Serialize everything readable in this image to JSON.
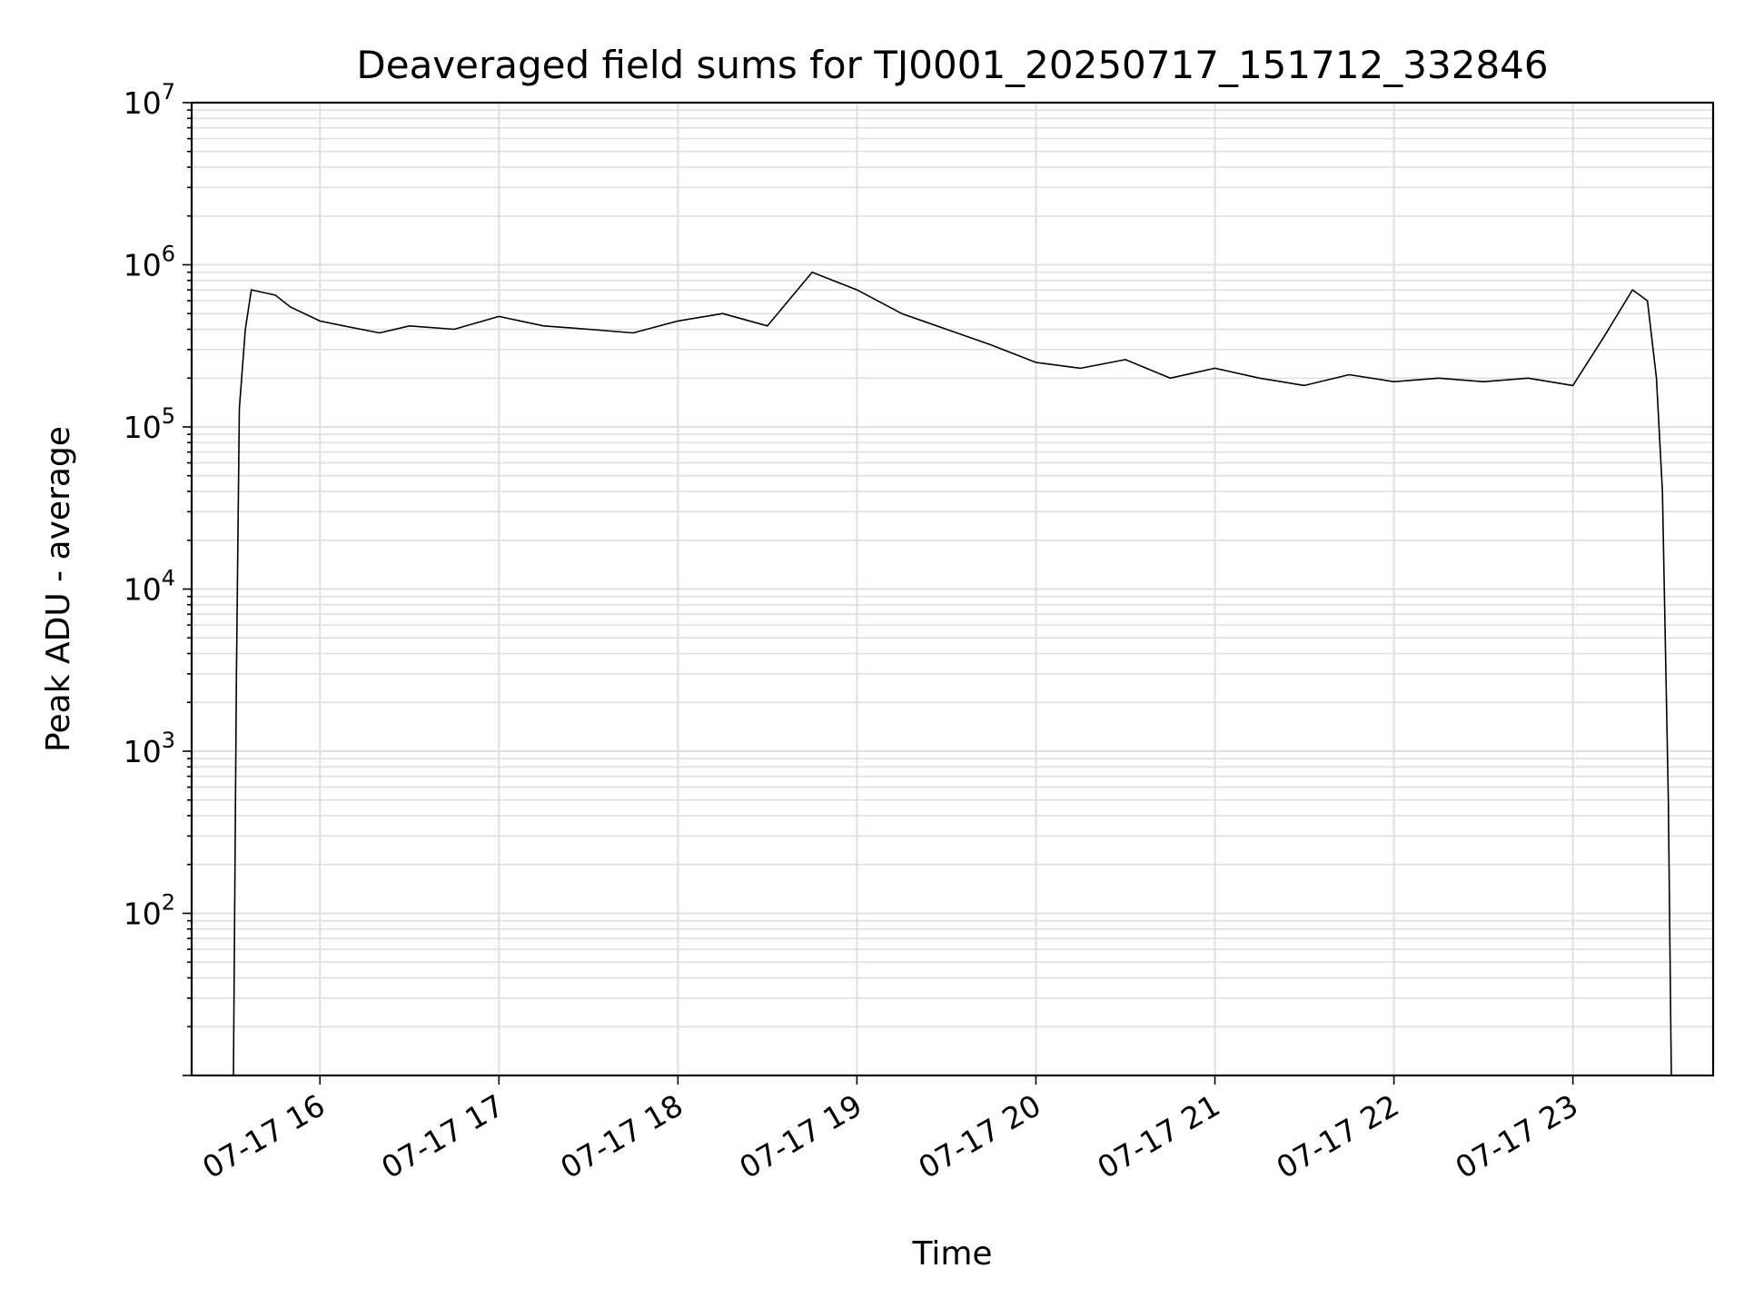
{
  "chart_data": {
    "type": "line",
    "title": "Deaveraged field sums for TJ0001_20250717_151712_332846",
    "xlabel": "Time",
    "ylabel": "Peak ADU - average",
    "yscale": "log",
    "ylim": [
      10,
      10000000
    ],
    "y_ticks": [
      {
        "value": 100,
        "base": "10",
        "exp": "2"
      },
      {
        "value": 1000,
        "base": "10",
        "exp": "3"
      },
      {
        "value": 10000,
        "base": "10",
        "exp": "4"
      },
      {
        "value": 100000,
        "base": "10",
        "exp": "5"
      },
      {
        "value": 1000000,
        "base": "10",
        "exp": "6"
      },
      {
        "value": 10000000,
        "base": "10",
        "exp": "7"
      }
    ],
    "xlim": [
      "2025-07-17 15:17",
      "2025-07-17 23:47"
    ],
    "x_ticks": [
      {
        "value": "2025-07-17 16:00",
        "label": "07-17 16"
      },
      {
        "value": "2025-07-17 17:00",
        "label": "07-17 17"
      },
      {
        "value": "2025-07-17 18:00",
        "label": "07-17 18"
      },
      {
        "value": "2025-07-17 19:00",
        "label": "07-17 19"
      },
      {
        "value": "2025-07-17 20:00",
        "label": "07-17 20"
      },
      {
        "value": "2025-07-17 21:00",
        "label": "07-17 21"
      },
      {
        "value": "2025-07-17 22:00",
        "label": "07-17 22"
      },
      {
        "value": "2025-07-17 23:00",
        "label": "07-17 23"
      }
    ],
    "grid": true,
    "series": [
      {
        "color": "#000000",
        "x": [
          "2025-07-17 15:31",
          "2025-07-17 15:32",
          "2025-07-17 15:33",
          "2025-07-17 15:35",
          "2025-07-17 15:37",
          "2025-07-17 15:45",
          "2025-07-17 15:50",
          "2025-07-17 16:00",
          "2025-07-17 16:08",
          "2025-07-17 16:20",
          "2025-07-17 16:30",
          "2025-07-17 16:45",
          "2025-07-17 17:00",
          "2025-07-17 17:15",
          "2025-07-17 17:30",
          "2025-07-17 17:45",
          "2025-07-17 18:00",
          "2025-07-17 18:15",
          "2025-07-17 18:30",
          "2025-07-17 18:45",
          "2025-07-17 19:00",
          "2025-07-17 19:15",
          "2025-07-17 19:30",
          "2025-07-17 19:45",
          "2025-07-17 20:00",
          "2025-07-17 20:15",
          "2025-07-17 20:30",
          "2025-07-17 20:45",
          "2025-07-17 21:00",
          "2025-07-17 21:15",
          "2025-07-17 21:30",
          "2025-07-17 21:45",
          "2025-07-17 22:00",
          "2025-07-17 22:15",
          "2025-07-17 22:30",
          "2025-07-17 22:45",
          "2025-07-17 23:00",
          "2025-07-17 23:10",
          "2025-07-17 23:20",
          "2025-07-17 23:25",
          "2025-07-17 23:28",
          "2025-07-17 23:30",
          "2025-07-17 23:32",
          "2025-07-17 23:33"
        ],
        "y": [
          10,
          3000,
          130000,
          400000,
          700000,
          650000,
          550000,
          450000,
          420000,
          380000,
          420000,
          400000,
          480000,
          420000,
          400000,
          380000,
          450000,
          500000,
          420000,
          900000,
          700000,
          500000,
          400000,
          320000,
          250000,
          230000,
          260000,
          200000,
          230000,
          200000,
          180000,
          210000,
          190000,
          200000,
          190000,
          200000,
          180000,
          350000,
          700000,
          600000,
          200000,
          40000,
          500,
          10
        ]
      }
    ]
  }
}
